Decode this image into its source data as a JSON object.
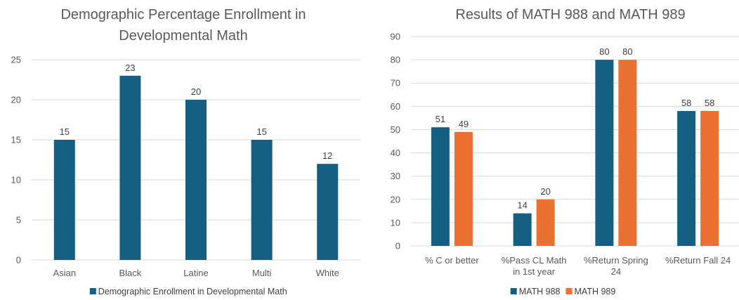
{
  "chart_data": [
    {
      "type": "bar",
      "title_lines": [
        "Demographic Percentage Enrollment in",
        "Developmental Math"
      ],
      "categories": [
        "Asian",
        "Black",
        "Latine",
        "Multi",
        "White"
      ],
      "series": [
        {
          "name": "Demographic Enrollment in Developmental Math",
          "values": [
            15,
            23,
            20,
            15,
            12
          ],
          "color": "#156082"
        }
      ],
      "ylim": [
        0,
        25
      ],
      "yticks": [
        0,
        5,
        10,
        15,
        20,
        25
      ],
      "grid": true,
      "legend": "bottom"
    },
    {
      "type": "bar",
      "title_lines": [
        "Results of MATH 988 and MATH 989"
      ],
      "categories": [
        [
          "% C or better"
        ],
        [
          "%Pass CL Math",
          "in 1st year"
        ],
        [
          "%Return Spring",
          "24"
        ],
        [
          "%Return Fall 24"
        ]
      ],
      "series": [
        {
          "name": "MATH 988",
          "values": [
            51,
            14,
            80,
            58
          ],
          "color": "#156082"
        },
        {
          "name": "MATH 989",
          "values": [
            49,
            20,
            80,
            58
          ],
          "color": "#E97132"
        }
      ],
      "ylim": [
        0,
        90
      ],
      "yticks": [
        0,
        10,
        20,
        30,
        40,
        50,
        60,
        70,
        80,
        90
      ],
      "grid": true,
      "legend": "bottom"
    }
  ]
}
